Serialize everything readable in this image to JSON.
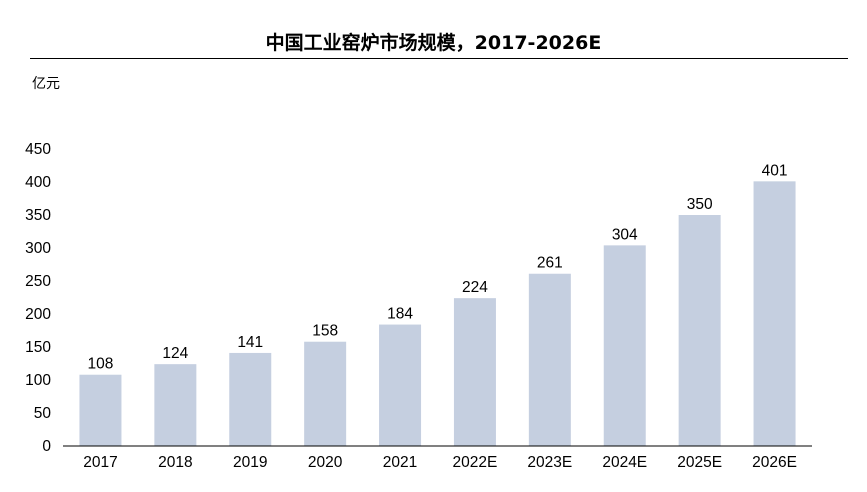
{
  "chart_data": {
    "type": "bar",
    "title": "中国工业窑炉市场规模，2017-2026E",
    "unit_label": "亿元",
    "categories": [
      "2017",
      "2018",
      "2019",
      "2020",
      "2021",
      "2022E",
      "2023E",
      "2024E",
      "2025E",
      "2026E"
    ],
    "values": [
      108,
      124,
      141,
      158,
      184,
      224,
      261,
      304,
      350,
      401
    ],
    "ylim": [
      0,
      450
    ],
    "yticks": [
      0,
      50,
      100,
      150,
      200,
      250,
      300,
      350,
      400,
      450
    ],
    "data_labels": true,
    "grid": false,
    "legend": "none",
    "bar_color": "#c5cfe0",
    "axis_color": "#000000"
  }
}
